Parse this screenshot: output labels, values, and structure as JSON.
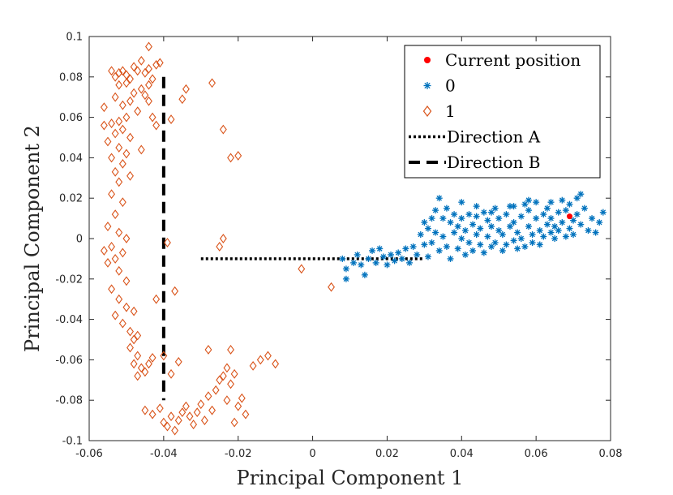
{
  "chart_data": {
    "type": "scatter",
    "title": "",
    "xlabel": "Principal Component 1",
    "ylabel": "Principal Component 2",
    "xlim": [
      -0.06,
      0.08
    ],
    "ylim": [
      -0.1,
      0.1
    ],
    "xticks": [
      -0.06,
      -0.04,
      -0.02,
      0,
      0.02,
      0.04,
      0.06,
      0.08
    ],
    "yticks": [
      -0.1,
      -0.08,
      -0.06,
      -0.04,
      -0.02,
      0,
      0.02,
      0.04,
      0.06,
      0.08,
      0.1
    ],
    "xtick_labels": [
      "-0.06",
      "-0.04",
      "-0.02",
      "0",
      "0.02",
      "0.04",
      "0.06",
      "0.08"
    ],
    "ytick_labels": [
      "-0.1",
      "-0.08",
      "-0.06",
      "-0.04",
      "-0.02",
      "0",
      "0.02",
      "0.04",
      "0.06",
      "0.08",
      "0.1"
    ],
    "grid": false,
    "legend_position": "top-right",
    "colors": {
      "current": "#ff0000",
      "class0": "#0072bd",
      "class1": "#d95319",
      "lines": "#000000",
      "axes": "#262626"
    },
    "series": [
      {
        "name": "Current position",
        "marker": "dot",
        "points": [
          [
            0.069,
            0.011
          ]
        ]
      },
      {
        "name": "0",
        "marker": "asterisk",
        "points": [
          [
            0.008,
            -0.01
          ],
          [
            0.009,
            -0.02
          ],
          [
            0.009,
            -0.015
          ],
          [
            0.011,
            -0.012
          ],
          [
            0.012,
            -0.008
          ],
          [
            0.013,
            -0.013
          ],
          [
            0.014,
            -0.018
          ],
          [
            0.015,
            -0.01
          ],
          [
            0.016,
            -0.006
          ],
          [
            0.017,
            -0.012
          ],
          [
            0.018,
            -0.005
          ],
          [
            0.019,
            -0.009
          ],
          [
            0.02,
            -0.013
          ],
          [
            0.021,
            -0.008
          ],
          [
            0.022,
            -0.011
          ],
          [
            0.023,
            -0.007
          ],
          [
            0.024,
            -0.01
          ],
          [
            0.025,
            -0.005
          ],
          [
            0.026,
            -0.012
          ],
          [
            0.027,
            -0.004
          ],
          [
            0.028,
            -0.008
          ],
          [
            0.029,
            0.002
          ],
          [
            0.03,
            0.008
          ],
          [
            0.03,
            -0.003
          ],
          [
            0.031,
            0.005
          ],
          [
            0.031,
            -0.009
          ],
          [
            0.032,
            0.01
          ],
          [
            0.032,
            -0.002
          ],
          [
            0.033,
            0.014
          ],
          [
            0.033,
            0.003
          ],
          [
            0.034,
            0.02
          ],
          [
            0.034,
            -0.006
          ],
          [
            0.035,
            0.01
          ],
          [
            0.035,
            0.001
          ],
          [
            0.036,
            0.015
          ],
          [
            0.036,
            -0.004
          ],
          [
            0.037,
            0.008
          ],
          [
            0.037,
            -0.01
          ],
          [
            0.038,
            0.003
          ],
          [
            0.038,
            0.012
          ],
          [
            0.039,
            -0.005
          ],
          [
            0.039,
            0.006
          ],
          [
            0.04,
            0.0
          ],
          [
            0.04,
            0.01
          ],
          [
            0.041,
            -0.008
          ],
          [
            0.041,
            0.004
          ],
          [
            0.042,
            0.012
          ],
          [
            0.042,
            -0.002
          ],
          [
            0.043,
            0.007
          ],
          [
            0.043,
            -0.006
          ],
          [
            0.044,
            0.002
          ],
          [
            0.044,
            0.011
          ],
          [
            0.045,
            -0.003
          ],
          [
            0.045,
            0.005
          ],
          [
            0.046,
            0.013
          ],
          [
            0.046,
            -0.007
          ],
          [
            0.047,
            0.001
          ],
          [
            0.047,
            0.009
          ],
          [
            0.048,
            -0.004
          ],
          [
            0.048,
            0.006
          ],
          [
            0.049,
            0.015
          ],
          [
            0.049,
            -0.002
          ],
          [
            0.05,
            0.004
          ],
          [
            0.05,
            0.01
          ],
          [
            0.051,
            -0.006
          ],
          [
            0.051,
            0.002
          ],
          [
            0.052,
            0.012
          ],
          [
            0.052,
            -0.003
          ],
          [
            0.053,
            0.006
          ],
          [
            0.053,
            0.016
          ],
          [
            0.054,
            -0.001
          ],
          [
            0.054,
            0.008
          ],
          [
            0.055,
            0.003
          ],
          [
            0.055,
            -0.005
          ],
          [
            0.056,
            0.011
          ],
          [
            0.056,
            0.0
          ],
          [
            0.057,
            0.017
          ],
          [
            0.057,
            -0.004
          ],
          [
            0.058,
            0.006
          ],
          [
            0.058,
            0.014
          ],
          [
            0.059,
            0.002
          ],
          [
            0.059,
            -0.002
          ],
          [
            0.06,
            0.01
          ],
          [
            0.06,
            0.018
          ],
          [
            0.061,
            0.004
          ],
          [
            0.061,
            -0.003
          ],
          [
            0.062,
            0.012
          ],
          [
            0.062,
            0.001
          ],
          [
            0.063,
            0.007
          ],
          [
            0.063,
            0.015
          ],
          [
            0.064,
            0.003
          ],
          [
            0.064,
            0.01
          ],
          [
            0.065,
            0.0
          ],
          [
            0.065,
            0.006
          ],
          [
            0.066,
            0.013
          ],
          [
            0.066,
            0.004
          ],
          [
            0.067,
            0.019
          ],
          [
            0.067,
            0.008
          ],
          [
            0.068,
            0.001
          ],
          [
            0.068,
            0.014
          ],
          [
            0.069,
            0.005
          ],
          [
            0.069,
            0.017
          ],
          [
            0.07,
            0.009
          ],
          [
            0.07,
            0.002
          ],
          [
            0.071,
            0.02
          ],
          [
            0.071,
            0.012
          ],
          [
            0.072,
            0.022
          ],
          [
            0.072,
            0.007
          ],
          [
            0.073,
            0.015
          ],
          [
            0.074,
            0.004
          ],
          [
            0.075,
            0.01
          ],
          [
            0.076,
            0.003
          ],
          [
            0.077,
            0.008
          ],
          [
            0.078,
            0.013
          ],
          [
            0.064,
            0.018
          ],
          [
            0.058,
            0.019
          ],
          [
            0.054,
            0.016
          ],
          [
            0.048,
            0.013
          ],
          [
            0.044,
            0.016
          ],
          [
            0.04,
            0.018
          ]
        ]
      },
      {
        "name": "1",
        "marker": "diamond",
        "points": [
          [
            -0.054,
            0.083
          ],
          [
            -0.053,
            0.08
          ],
          [
            -0.052,
            0.082
          ],
          [
            -0.051,
            0.083
          ],
          [
            -0.05,
            0.081
          ],
          [
            -0.049,
            0.079
          ],
          [
            -0.048,
            0.085
          ],
          [
            -0.047,
            0.083
          ],
          [
            -0.046,
            0.088
          ],
          [
            -0.045,
            0.082
          ],
          [
            -0.044,
            0.084
          ],
          [
            -0.043,
            0.079
          ],
          [
            -0.042,
            0.086
          ],
          [
            -0.041,
            0.087
          ],
          [
            -0.044,
            0.076
          ],
          [
            -0.046,
            0.074
          ],
          [
            -0.048,
            0.072
          ],
          [
            -0.05,
            0.077
          ],
          [
            -0.052,
            0.076
          ],
          [
            -0.053,
            0.07
          ],
          [
            -0.051,
            0.066
          ],
          [
            -0.049,
            0.068
          ],
          [
            -0.047,
            0.063
          ],
          [
            -0.05,
            0.06
          ],
          [
            -0.052,
            0.058
          ],
          [
            -0.054,
            0.057
          ],
          [
            -0.056,
            0.056
          ],
          [
            -0.053,
            0.052
          ],
          [
            -0.051,
            0.054
          ],
          [
            -0.049,
            0.05
          ],
          [
            -0.055,
            0.048
          ],
          [
            -0.052,
            0.045
          ],
          [
            -0.05,
            0.042
          ],
          [
            -0.046,
            0.044
          ],
          [
            -0.054,
            0.04
          ],
          [
            -0.051,
            0.037
          ],
          [
            -0.053,
            0.033
          ],
          [
            -0.049,
            0.031
          ],
          [
            -0.052,
            0.028
          ],
          [
            -0.054,
            0.022
          ],
          [
            -0.051,
            0.018
          ],
          [
            -0.053,
            0.012
          ],
          [
            -0.055,
            0.006
          ],
          [
            -0.052,
            0.003
          ],
          [
            -0.05,
            0.0
          ],
          [
            -0.054,
            -0.004
          ],
          [
            -0.056,
            -0.006
          ],
          [
            -0.053,
            -0.01
          ],
          [
            -0.051,
            -0.007
          ],
          [
            -0.055,
            -0.012
          ],
          [
            -0.052,
            -0.016
          ],
          [
            -0.05,
            -0.021
          ],
          [
            -0.054,
            -0.025
          ],
          [
            -0.052,
            -0.03
          ],
          [
            -0.05,
            -0.034
          ],
          [
            -0.048,
            -0.036
          ],
          [
            -0.053,
            -0.038
          ],
          [
            -0.051,
            -0.042
          ],
          [
            -0.049,
            -0.046
          ],
          [
            -0.048,
            -0.05
          ],
          [
            -0.047,
            -0.048
          ],
          [
            -0.049,
            -0.054
          ],
          [
            -0.047,
            -0.058
          ],
          [
            -0.048,
            -0.062
          ],
          [
            -0.046,
            -0.064
          ],
          [
            -0.045,
            -0.066
          ],
          [
            -0.047,
            -0.068
          ],
          [
            -0.044,
            -0.062
          ],
          [
            -0.043,
            -0.059
          ],
          [
            -0.042,
            -0.03
          ],
          [
            -0.045,
            -0.085
          ],
          [
            -0.043,
            -0.087
          ],
          [
            -0.041,
            -0.084
          ],
          [
            -0.04,
            -0.091
          ],
          [
            -0.039,
            -0.093
          ],
          [
            -0.038,
            -0.088
          ],
          [
            -0.037,
            -0.095
          ],
          [
            -0.036,
            -0.09
          ],
          [
            -0.035,
            -0.086
          ],
          [
            -0.034,
            -0.083
          ],
          [
            -0.033,
            -0.088
          ],
          [
            -0.032,
            -0.092
          ],
          [
            -0.031,
            -0.086
          ],
          [
            -0.03,
            -0.082
          ],
          [
            -0.029,
            -0.09
          ],
          [
            -0.028,
            -0.078
          ],
          [
            -0.027,
            -0.085
          ],
          [
            -0.026,
            -0.075
          ],
          [
            -0.025,
            -0.07
          ],
          [
            -0.024,
            -0.068
          ],
          [
            -0.023,
            -0.08
          ],
          [
            -0.022,
            -0.072
          ],
          [
            -0.021,
            -0.067
          ],
          [
            -0.02,
            -0.083
          ],
          [
            -0.019,
            -0.079
          ],
          [
            -0.018,
            -0.087
          ],
          [
            -0.021,
            -0.091
          ],
          [
            -0.023,
            -0.064
          ],
          [
            -0.022,
            -0.055
          ],
          [
            -0.028,
            -0.055
          ],
          [
            -0.016,
            -0.063
          ],
          [
            -0.014,
            -0.06
          ],
          [
            -0.012,
            -0.058
          ],
          [
            -0.01,
            -0.062
          ],
          [
            -0.036,
            -0.061
          ],
          [
            -0.038,
            -0.067
          ],
          [
            -0.04,
            -0.058
          ],
          [
            -0.037,
            -0.026
          ],
          [
            -0.039,
            -0.002
          ],
          [
            -0.025,
            -0.004
          ],
          [
            -0.024,
            0.0
          ],
          [
            -0.003,
            -0.015
          ],
          [
            0.005,
            -0.024
          ],
          [
            -0.044,
            0.095
          ],
          [
            -0.043,
            0.06
          ],
          [
            -0.042,
            0.056
          ],
          [
            -0.038,
            0.059
          ],
          [
            -0.035,
            0.069
          ],
          [
            -0.034,
            0.074
          ],
          [
            -0.027,
            0.077
          ],
          [
            -0.024,
            0.054
          ],
          [
            -0.022,
            0.04
          ],
          [
            -0.02,
            0.041
          ],
          [
            -0.056,
            0.065
          ],
          [
            -0.045,
            0.071
          ],
          [
            -0.044,
            0.068
          ]
        ]
      },
      {
        "name": "Direction A",
        "style": "dotted",
        "line": [
          [
            -0.03,
            -0.01
          ],
          [
            0.03,
            -0.01
          ]
        ]
      },
      {
        "name": "Direction B",
        "style": "dashed",
        "line": [
          [
            -0.04,
            0.08
          ],
          [
            -0.04,
            -0.08
          ]
        ]
      }
    ]
  }
}
